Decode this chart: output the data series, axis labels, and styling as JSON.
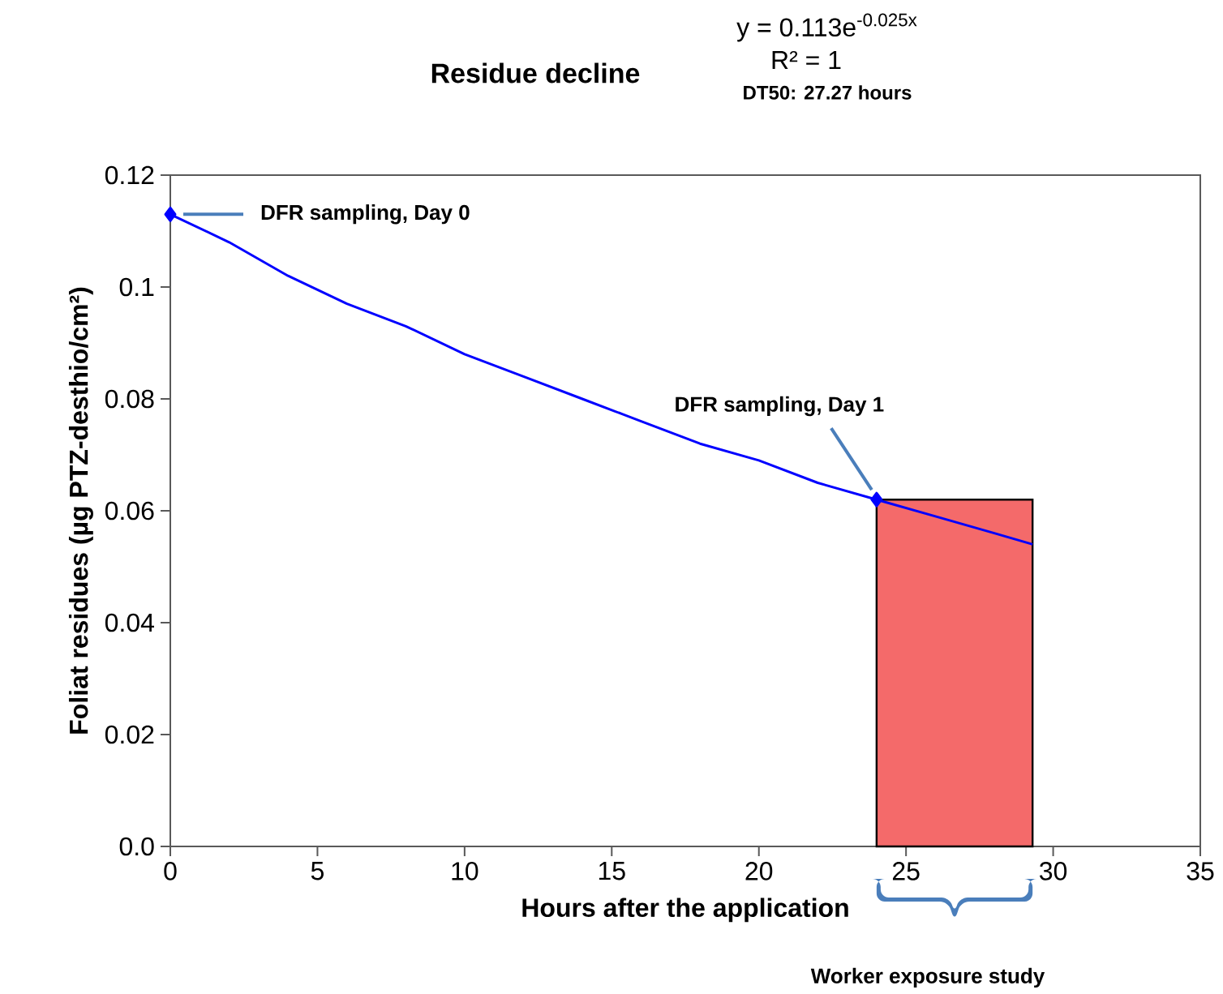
{
  "chart_data": {
    "type": "line",
    "title": "Residue decline",
    "xlabel": "Hours after the application",
    "ylabel": "Foliat residues (µg PTZ-desthio/cm²)",
    "xlim": [
      0,
      35
    ],
    "xticks": [
      0,
      5,
      10,
      15,
      20,
      25,
      30,
      35
    ],
    "ylim": [
      0,
      0.12
    ],
    "yticks": [
      {
        "value": 0,
        "label": "0.0"
      },
      0.02,
      0.04,
      0.06,
      0.08,
      0.1,
      0.12
    ],
    "series": [
      {
        "type": "area",
        "color": "#f46a6a",
        "x": [
          24,
          29.3
        ],
        "values": [
          0.062,
          0.062
        ]
      },
      {
        "marker": "none",
        "color": "#0000ff",
        "x": [
          0,
          2,
          4,
          6,
          8,
          10,
          12,
          14,
          16,
          18,
          20,
          22,
          24,
          26,
          28,
          29.3
        ],
        "values": [
          0.113,
          0.108,
          0.102,
          0.097,
          0.093,
          0.088,
          0.084,
          0.08,
          0.076,
          0.072,
          0.069,
          0.065,
          0.062,
          0.059,
          0.056,
          0.054
        ]
      },
      {
        "type": "scatter",
        "marker": "diamond",
        "color": "#0000ff",
        "x": [
          0,
          24
        ],
        "values": [
          0.113,
          0.062
        ]
      }
    ],
    "annotations": [
      {
        "text": "DFR sampling, Day 0",
        "x": 0,
        "y": 0.113
      },
      {
        "text": "DFR sampling, Day 1",
        "x": 24,
        "y": 0.062
      },
      "y = 0.113e$^{-0.025x}$",
      "R² = 1",
      "DT50: 27.27 hours",
      "Worker exposure study"
    ]
  }
}
